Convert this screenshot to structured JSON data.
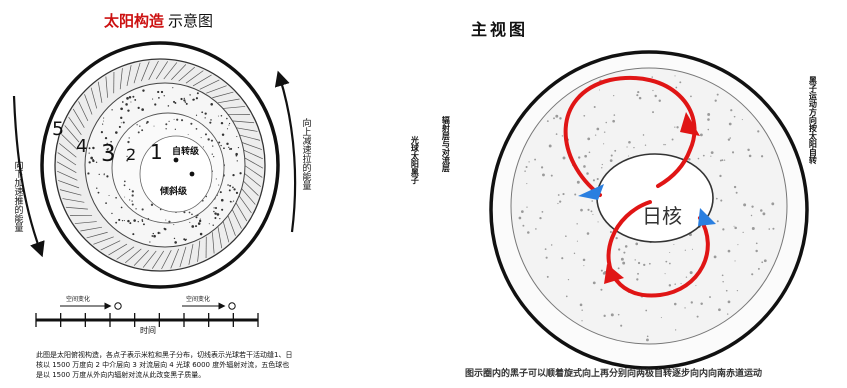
{
  "left_figure": {
    "title_red": "太阳构造",
    "title_black": "示意图",
    "title_red_color": "#cc1111",
    "layer_numbers": [
      "1",
      "2",
      "3",
      "4",
      "5"
    ],
    "core_label": "自转级",
    "inner_label": "倾斜级",
    "left_arrow_text": "向下加速推的能量",
    "right_arrow_text": "向上减速拉的能量",
    "timeline_label": "时间",
    "timeline_tag_1": "空间变化",
    "timeline_tag_2": "空间变化",
    "caption": "此图是太阳俯视构造，各点子表示米粒和黑子分布，切线表示光球若干活动缝1、日核以 1500 万度向 2 中介层向 3 对流层向 4 光球 6000 度外辐射对流，五色球也是以 1500 万度从外向内辐射对流从此改变黑子质量。"
  },
  "right_figure": {
    "title": "主视图",
    "center_label": "日核",
    "left_vertical_1": "辐射层与对流层",
    "left_vertical_2": "光球太阳黑子",
    "right_vertical": "黑子运动方向按太阳自转",
    "bottom_caption": "图示圈内的黑子可以顺着旋式向上再分别向两极自转逐步向内向南赤道运动",
    "loop_color": "#e01515",
    "arrow_color": "#2a7fe0"
  }
}
